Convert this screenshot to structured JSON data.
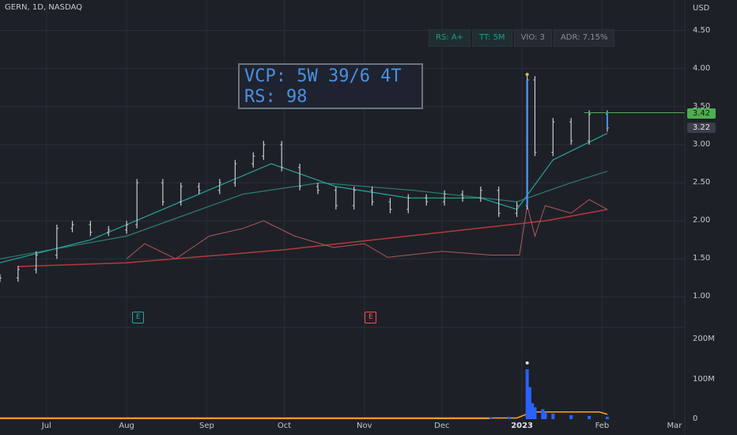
{
  "symbol": "GERN, 1D, NASDAQ",
  "currency": "USD",
  "badges": {
    "rs": "RS: A+",
    "tt": "TT: 5M",
    "vio": "VIO: 3",
    "adr": "ADR: 7.15%"
  },
  "annotation": {
    "line1": "VCP: 5W 39/6 4T",
    "line2": "RS: 98"
  },
  "price_tags": {
    "last": "3.42",
    "other": "3.22"
  },
  "earnings_markers": [
    {
      "label": "E",
      "date": "2022-08-05",
      "color": "#26a69a"
    },
    {
      "label": "E",
      "date": "2022-11-03",
      "color": "#ef5350"
    }
  ],
  "colors": {
    "up": "#c8cad2",
    "grid": "#2a2e38",
    "ema_green": "#26a69a",
    "sma_teal": "#2e7d6e",
    "sma_red": "#b23b3b",
    "rs_line": "#b05a5a",
    "vol_blue": "#2962ff",
    "vol_orange": "#f5a623",
    "highlight": "#4a90e2",
    "pink": "#e040fb",
    "last_line": "#4caf50"
  },
  "chart_data": {
    "type": "line",
    "y_axis": {
      "ticks": [
        "4.50",
        "4.00",
        "3.50",
        "3.00",
        "2.50",
        "2.00",
        "1.50",
        "1.00"
      ],
      "range": [
        0.6,
        4.9
      ]
    },
    "volume_axis": {
      "ticks": [
        "200M",
        "100M",
        "0"
      ],
      "range": [
        0,
        210
      ]
    },
    "x_axis": {
      "ticks": [
        {
          "label": "Jul",
          "date": "2022-07-01"
        },
        {
          "label": "Aug",
          "date": "2022-08-01"
        },
        {
          "label": "Sep",
          "date": "2022-09-01"
        },
        {
          "label": "Oct",
          "date": "2022-10-01"
        },
        {
          "label": "Nov",
          "date": "2022-11-01"
        },
        {
          "label": "Dec",
          "date": "2022-12-01"
        },
        {
          "label": "2023",
          "date": "2023-01-01",
          "bold": true
        },
        {
          "label": "Feb",
          "date": "2023-02-01"
        },
        {
          "label": "Mar",
          "date": "2023-03-01"
        }
      ],
      "range": [
        "2022-06-13",
        "2023-03-05"
      ]
    },
    "price_series": [
      {
        "date": "2022-06-13",
        "close": 1.25
      },
      {
        "date": "2022-06-20",
        "close": 1.36
      },
      {
        "date": "2022-06-27",
        "close": 1.55
      },
      {
        "date": "2022-07-05",
        "close": 1.9
      },
      {
        "date": "2022-07-11",
        "close": 1.95
      },
      {
        "date": "2022-07-18",
        "close": 1.85
      },
      {
        "date": "2022-07-25",
        "close": 1.88
      },
      {
        "date": "2022-08-01",
        "close": 1.95
      },
      {
        "date": "2022-08-05",
        "close": 2.5
      },
      {
        "date": "2022-08-15",
        "close": 2.25
      },
      {
        "date": "2022-08-22",
        "close": 2.45
      },
      {
        "date": "2022-08-29",
        "close": 2.4
      },
      {
        "date": "2022-09-06",
        "close": 2.5
      },
      {
        "date": "2022-09-12",
        "close": 2.75
      },
      {
        "date": "2022-09-19",
        "close": 2.85
      },
      {
        "date": "2022-09-23",
        "close": 3.0
      },
      {
        "date": "2022-09-30",
        "close": 2.7
      },
      {
        "date": "2022-10-07",
        "close": 2.45
      },
      {
        "date": "2022-10-14",
        "close": 2.4
      },
      {
        "date": "2022-10-21",
        "close": 2.2
      },
      {
        "date": "2022-10-28",
        "close": 2.4
      },
      {
        "date": "2022-11-04",
        "close": 2.25
      },
      {
        "date": "2022-11-11",
        "close": 2.15
      },
      {
        "date": "2022-11-18",
        "close": 2.3
      },
      {
        "date": "2022-11-25",
        "close": 2.25
      },
      {
        "date": "2022-12-02",
        "close": 2.35
      },
      {
        "date": "2022-12-09",
        "close": 2.3
      },
      {
        "date": "2022-12-16",
        "close": 2.4
      },
      {
        "date": "2022-12-23",
        "close": 2.1
      },
      {
        "date": "2022-12-30",
        "close": 2.2
      },
      {
        "date": "2023-01-03",
        "close": 3.85
      },
      {
        "date": "2023-01-06",
        "close": 2.9
      },
      {
        "date": "2023-01-13",
        "close": 3.3
      },
      {
        "date": "2023-01-20",
        "close": 3.05
      },
      {
        "date": "2023-01-27",
        "close": 3.4
      },
      {
        "date": "2023-02-03",
        "close": 3.22
      }
    ],
    "ema21": [
      {
        "date": "2022-06-13",
        "v": 1.45
      },
      {
        "date": "2022-07-18",
        "v": 1.75
      },
      {
        "date": "2022-08-22",
        "v": 2.25
      },
      {
        "date": "2022-09-26",
        "v": 2.75
      },
      {
        "date": "2022-10-21",
        "v": 2.45
      },
      {
        "date": "2022-11-18",
        "v": 2.3
      },
      {
        "date": "2022-12-16",
        "v": 2.3
      },
      {
        "date": "2022-12-30",
        "v": 2.15
      },
      {
        "date": "2023-01-13",
        "v": 2.8
      },
      {
        "date": "2023-02-03",
        "v": 3.15
      }
    ],
    "sma50": [
      {
        "date": "2022-06-13",
        "v": 1.5
      },
      {
        "date": "2022-08-01",
        "v": 1.8
      },
      {
        "date": "2022-09-15",
        "v": 2.35
      },
      {
        "date": "2022-10-15",
        "v": 2.5
      },
      {
        "date": "2022-11-20",
        "v": 2.4
      },
      {
        "date": "2022-12-30",
        "v": 2.25
      },
      {
        "date": "2023-01-20",
        "v": 2.5
      },
      {
        "date": "2023-02-03",
        "v": 2.65
      }
    ],
    "sma200": [
      {
        "date": "2022-06-20",
        "v": 1.4
      },
      {
        "date": "2022-08-01",
        "v": 1.45
      },
      {
        "date": "2022-10-01",
        "v": 1.62
      },
      {
        "date": "2022-12-01",
        "v": 1.85
      },
      {
        "date": "2023-01-10",
        "v": 2.0
      },
      {
        "date": "2023-02-03",
        "v": 2.15
      }
    ],
    "rs_line": [
      {
        "date": "2022-08-01",
        "v": 1.5
      },
      {
        "date": "2022-08-08",
        "v": 1.7
      },
      {
        "date": "2022-08-20",
        "v": 1.5
      },
      {
        "date": "2022-09-02",
        "v": 1.8
      },
      {
        "date": "2022-09-15",
        "v": 1.9
      },
      {
        "date": "2022-09-23",
        "v": 2.0
      },
      {
        "date": "2022-10-05",
        "v": 1.8
      },
      {
        "date": "2022-10-20",
        "v": 1.65
      },
      {
        "date": "2022-11-01",
        "v": 1.7
      },
      {
        "date": "2022-11-10",
        "v": 1.52
      },
      {
        "date": "2022-12-01",
        "v": 1.6
      },
      {
        "date": "2022-12-20",
        "v": 1.55
      },
      {
        "date": "2022-12-31",
        "v": 1.55
      },
      {
        "date": "2023-01-03",
        "v": 2.2
      },
      {
        "date": "2023-01-06",
        "v": 1.8
      },
      {
        "date": "2023-01-10",
        "v": 2.2
      },
      {
        "date": "2023-01-20",
        "v": 2.1
      },
      {
        "date": "2023-01-27",
        "v": 2.28
      },
      {
        "date": "2023-02-03",
        "v": 2.15
      }
    ],
    "volume": [
      {
        "date": "2022-12-20",
        "v": 4
      },
      {
        "date": "2022-12-27",
        "v": 6
      },
      {
        "date": "2023-01-03",
        "v": 125
      },
      {
        "date": "2023-01-04",
        "v": 80
      },
      {
        "date": "2023-01-05",
        "v": 40
      },
      {
        "date": "2023-01-06",
        "v": 30
      },
      {
        "date": "2023-01-09",
        "v": 25
      },
      {
        "date": "2023-01-10",
        "v": 18
      },
      {
        "date": "2023-01-13",
        "v": 14
      },
      {
        "date": "2023-01-20",
        "v": 10
      },
      {
        "date": "2023-01-27",
        "v": 8
      },
      {
        "date": "2023-02-03",
        "v": 6
      }
    ],
    "volume_base": 3,
    "volume_avg": [
      {
        "date": "2022-06-13",
        "v": 3
      },
      {
        "date": "2022-12-30",
        "v": 3
      },
      {
        "date": "2023-01-05",
        "v": 18
      },
      {
        "date": "2023-01-31",
        "v": 18
      },
      {
        "date": "2023-02-03",
        "v": 12
      }
    ]
  }
}
